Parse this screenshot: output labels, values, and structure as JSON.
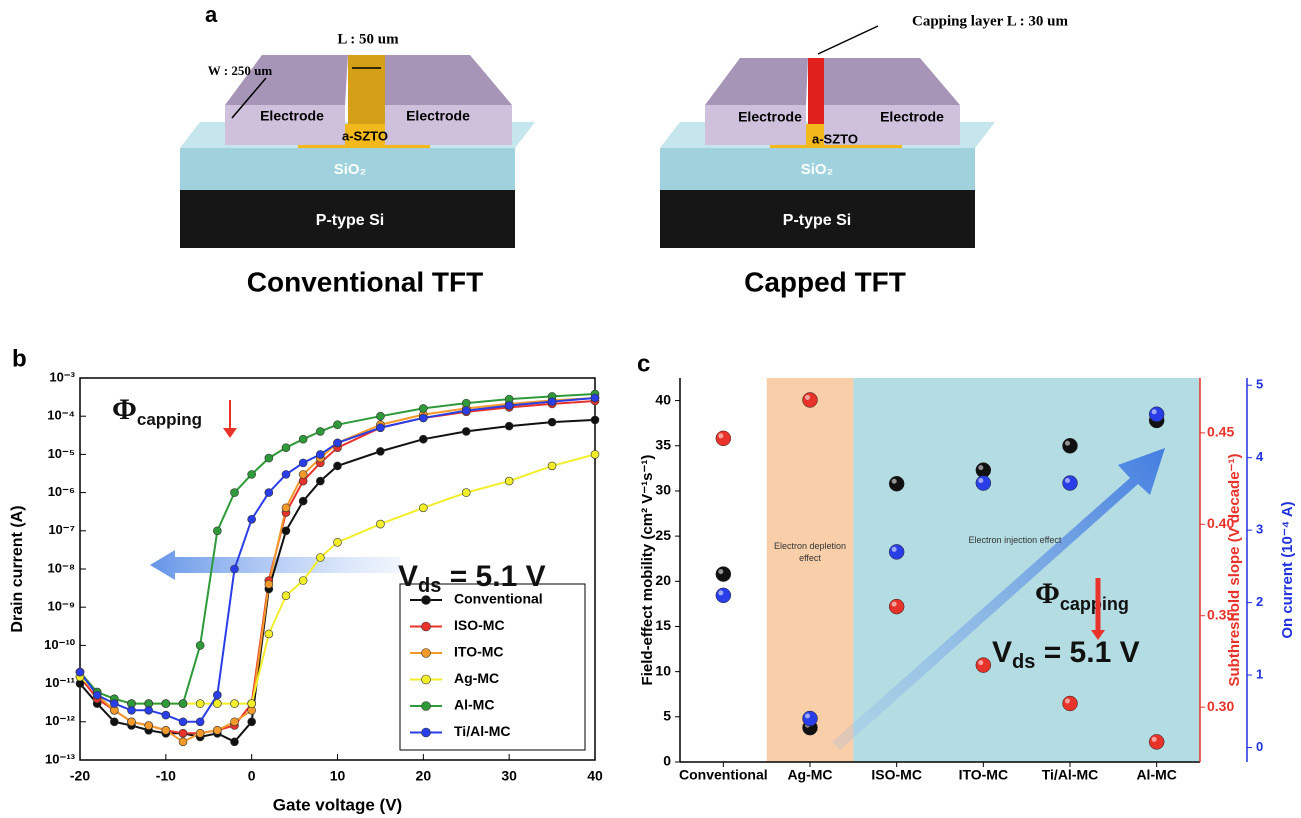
{
  "panel_a": {
    "label": "a",
    "devices": [
      {
        "title": "Conventional TFT",
        "dimension_labels": [
          "L : 50 um",
          "W : 250 um"
        ],
        "electrode_labels": [
          "Electrode",
          "Electrode"
        ],
        "channel": "a-SZTO",
        "insulator": "SiO₂",
        "substrate": "P-type Si"
      },
      {
        "title": "Capped TFT",
        "dimension_labels": [
          "Capping layer L : 30 um"
        ],
        "electrode_labels": [
          "Electrode",
          "Electrode"
        ],
        "channel": "a-SZTO",
        "insulator": "SiO₂",
        "substrate": "P-type Si"
      }
    ]
  },
  "chart_data": [
    {
      "type": "line",
      "label": "b",
      "xlabel": "Gate voltage (V)",
      "ylabel": "Drain current (A)",
      "log_y": true,
      "xlim": [
        -20,
        40
      ],
      "xticks": [
        -20,
        -10,
        0,
        10,
        20,
        30,
        40
      ],
      "ylim": [
        1e-13,
        0.001
      ],
      "yticks": [
        {
          "value": 1e-13,
          "label": "10⁻¹³"
        },
        {
          "value": 1e-12,
          "label": "10⁻¹²"
        },
        {
          "value": 1e-11,
          "label": "10⁻¹¹"
        },
        {
          "value": 1e-10,
          "label": "10⁻¹⁰"
        },
        {
          "value": 1e-09,
          "label": "10⁻⁹"
        },
        {
          "value": 1e-08,
          "label": "10⁻⁸"
        },
        {
          "value": 1e-07,
          "label": "10⁻⁷"
        },
        {
          "value": 1e-06,
          "label": "10⁻⁶"
        },
        {
          "value": 1e-05,
          "label": "10⁻⁵"
        },
        {
          "value": 0.0001,
          "label": "10⁻⁴"
        },
        {
          "value": 0.001,
          "label": "10⁻³"
        }
      ],
      "x": [
        -20,
        -18,
        -16,
        -14,
        -12,
        -10,
        -8,
        -6,
        -4,
        -2,
        0,
        2,
        4,
        6,
        8,
        10,
        15,
        20,
        25,
        30,
        35,
        40
      ],
      "series": [
        {
          "name": "Conventional",
          "color": "#111111",
          "values": [
            1e-11,
            3e-12,
            1e-12,
            8e-13,
            6e-13,
            5e-13,
            5e-13,
            4e-13,
            5e-13,
            3e-13,
            1e-12,
            3e-09,
            1e-07,
            6e-07,
            2e-06,
            5e-06,
            1.2e-05,
            2.5e-05,
            4e-05,
            5.5e-05,
            7e-05,
            8e-05
          ]
        },
        {
          "name": "ISO-MC",
          "color": "#e8332a",
          "values": [
            1.5e-11,
            4e-12,
            2e-12,
            1e-12,
            8e-13,
            6e-13,
            5e-13,
            5e-13,
            6e-13,
            8e-13,
            3e-12,
            5e-09,
            3e-07,
            2e-06,
            6e-06,
            1.5e-05,
            5e-05,
            9e-05,
            0.00013,
            0.00017,
            0.00021,
            0.00025
          ]
        },
        {
          "name": "ITO-MC",
          "color": "#f39a2a",
          "values": [
            2e-11,
            5e-12,
            2e-12,
            1e-12,
            8e-13,
            6e-13,
            3e-13,
            5e-13,
            6e-13,
            1e-12,
            2e-12,
            4e-09,
            4e-07,
            3e-06,
            8e-06,
            2e-05,
            6e-05,
            0.00011,
            0.00016,
            0.00021,
            0.00026,
            0.0003
          ]
        },
        {
          "name": "Ag-MC",
          "color": "#f2ee2a",
          "values": [
            1.5e-11,
            6e-12,
            4e-12,
            3e-12,
            3e-12,
            3e-12,
            3e-12,
            3e-12,
            3e-12,
            3e-12,
            3e-12,
            2e-10,
            2e-09,
            5e-09,
            2e-08,
            5e-08,
            1.5e-07,
            4e-07,
            1e-06,
            2e-06,
            5e-06,
            1e-05
          ]
        },
        {
          "name": "Al-MC",
          "color": "#2e9a3a",
          "values": [
            2e-11,
            6e-12,
            4e-12,
            3e-12,
            3e-12,
            3e-12,
            3e-12,
            1e-10,
            1e-07,
            1e-06,
            3e-06,
            8e-06,
            1.5e-05,
            2.5e-05,
            4e-05,
            6e-05,
            0.0001,
            0.00016,
            0.00022,
            0.00028,
            0.00033,
            0.00038
          ]
        },
        {
          "name": "Ti/Al-MC",
          "color": "#2a3ee8",
          "values": [
            2e-11,
            5e-12,
            3e-12,
            2e-12,
            2e-12,
            1.5e-12,
            1e-12,
            1e-12,
            5e-12,
            1e-08,
            2e-07,
            1e-06,
            3e-06,
            6e-06,
            1e-05,
            2e-05,
            5e-05,
            9e-05,
            0.00014,
            0.00019,
            0.00024,
            0.0003
          ]
        }
      ],
      "legend": "lower right",
      "annotations": [
        {
          "text": "Φ",
          "subscript": "capping"
        },
        {
          "text": "V",
          "subscript": "ds",
          "suffix": " = 5.1 V"
        }
      ]
    },
    {
      "type": "scatter",
      "label": "c",
      "categories": [
        "Conventional",
        "Ag-MC",
        "ISO-MC",
        "ITO-MC",
        "Ti/Al-MC",
        "Al-MC"
      ],
      "ylabel": "Field-effect mobility (cm² V⁻¹s⁻¹)",
      "y2label": "Subthreshold slope (V decade⁻¹)",
      "y3label": "On current (10⁻⁴ A)",
      "ylim": [
        0,
        42.5
      ],
      "yticks": [
        0,
        5,
        10,
        15,
        20,
        25,
        30,
        35,
        40
      ],
      "y2lim": [
        0.27,
        0.48
      ],
      "y2ticks": [
        {
          "value": 0.3,
          "label": "0.30"
        },
        0.35,
        {
          "value": 0.4,
          "label": "0.40"
        },
        0.45
      ],
      "y2color": "#e8332a",
      "y3lim": [
        -0.2,
        5.1
      ],
      "y3ticks": [
        0,
        1,
        2,
        3,
        4,
        5
      ],
      "y3color": "#2233dd",
      "series": [
        {
          "color": "#111111",
          "values": [
            20.8,
            3.8,
            30.8,
            32.3,
            35,
            37.8
          ]
        },
        {
          "color": "#e8332a",
          "axis": "y2",
          "values": [
            0.447,
            0.468,
            0.355,
            0.323,
            0.302,
            0.281
          ]
        },
        {
          "color": "#2a3ee8",
          "axis": "y3",
          "values": [
            2.1,
            0.4,
            2.7,
            3.65,
            3.65,
            4.6
          ]
        }
      ],
      "annotations": [
        {
          "text": "Electron depletion effect"
        },
        {
          "text": "Electron injection effect"
        },
        {
          "text": "Φ",
          "subscript": "capping"
        },
        {
          "text": "V",
          "subscript": "ds",
          "suffix": " = 5.1 V"
        }
      ]
    }
  ]
}
